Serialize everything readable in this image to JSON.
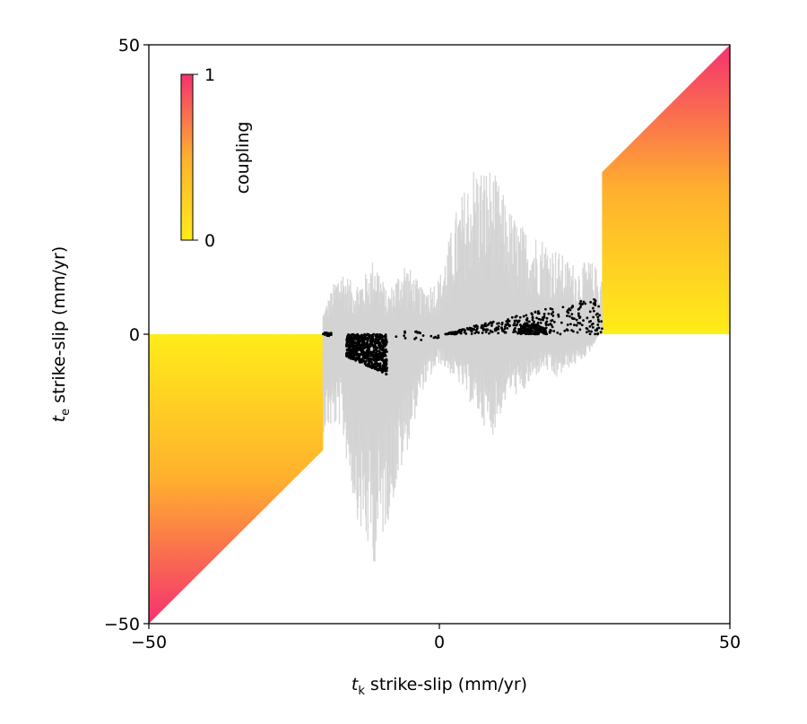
{
  "chart_data": {
    "type": "scatter",
    "xlabel": {
      "symbol": "t",
      "subscript": "k",
      "rest": " strike-slip (mm/yr)"
    },
    "ylabel": {
      "symbol": "t",
      "subscript": "e",
      "rest": " strike-slip (mm/yr)"
    },
    "xlim": [
      -50,
      50
    ],
    "ylim": [
      -50,
      50
    ],
    "x_ticks": [
      -50,
      0,
      50
    ],
    "y_ticks": [
      -50,
      0,
      50
    ],
    "x_tick_labels": [
      "−50",
      "0",
      "50"
    ],
    "y_tick_labels": [
      "−50",
      "0",
      "50"
    ],
    "grid": false,
    "colorbar": {
      "label": "coupling",
      "range": [
        0,
        1
      ],
      "tick_labels": [
        "0",
        "1"
      ],
      "colors": [
        "#ffec19",
        "#ffb02e",
        "#f5316f"
      ],
      "placement": "top-left"
    },
    "coupling_shading": {
      "description_regions": [
        "0 <= te <= tk for tk > 0",
        "tk <= te <= 0 for tk < 0"
      ],
      "colored_x_ranges": [
        [
          -50,
          -20
        ],
        [
          28,
          50
        ]
      ]
    },
    "uncertainty_envelope": {
      "color": "#d3d3d3",
      "x_range": [
        -20,
        28
      ],
      "profile": [
        {
          "x": -20,
          "ymin": -17,
          "ymax": 4
        },
        {
          "x": -17,
          "ymin": -16,
          "ymax": 12
        },
        {
          "x": -15,
          "ymin": -28,
          "ymax": 9
        },
        {
          "x": -13,
          "ymin": -37,
          "ymax": 10
        },
        {
          "x": -11,
          "ymin": -40,
          "ymax": 14
        },
        {
          "x": -9,
          "ymin": -33,
          "ymax": 7
        },
        {
          "x": -6,
          "ymin": -22,
          "ymax": 13
        },
        {
          "x": -3,
          "ymin": -10,
          "ymax": 8
        },
        {
          "x": 0,
          "ymin": -5,
          "ymax": 10
        },
        {
          "x": 3,
          "ymin": -8,
          "ymax": 22
        },
        {
          "x": 6,
          "ymin": -13,
          "ymax": 30
        },
        {
          "x": 9,
          "ymin": -18,
          "ymax": 29
        },
        {
          "x": 12,
          "ymin": -10,
          "ymax": 22
        },
        {
          "x": 14,
          "ymin": -11,
          "ymax": 19
        },
        {
          "x": 16,
          "ymin": -8,
          "ymax": 18
        },
        {
          "x": 18,
          "ymin": -6,
          "ymax": 17
        },
        {
          "x": 20,
          "ymin": -8,
          "ymax": 15
        },
        {
          "x": 22,
          "ymin": -6,
          "ymax": 13
        },
        {
          "x": 24,
          "ymin": -5,
          "ymax": 12
        },
        {
          "x": 26,
          "ymin": -3,
          "ymax": 13
        },
        {
          "x": 27.5,
          "ymin": 0,
          "ymax": 11
        }
      ]
    },
    "points": {
      "color": "#000000",
      "clusters": [
        {
          "x_range": [
            -20,
            -18.5
          ],
          "y_range": [
            -0.3,
            0.3
          ],
          "n": 18
        },
        {
          "x_range": [
            -16,
            -9
          ],
          "y_range": [
            -7,
            0
          ],
          "n": 700,
          "shape": "wedge_left"
        },
        {
          "x_range": [
            -8,
            0
          ],
          "y_range": [
            -1,
            0.5
          ],
          "n": 20,
          "shape": "sparse_line"
        },
        {
          "x_range": [
            1,
            28
          ],
          "y_range": [
            0,
            6.5
          ],
          "n": 320,
          "shape": "wedge_right"
        },
        {
          "x_range": [
            13.5,
            18.5
          ],
          "y_range": [
            0,
            1.8
          ],
          "n": 160,
          "shape": "blob"
        }
      ]
    }
  }
}
